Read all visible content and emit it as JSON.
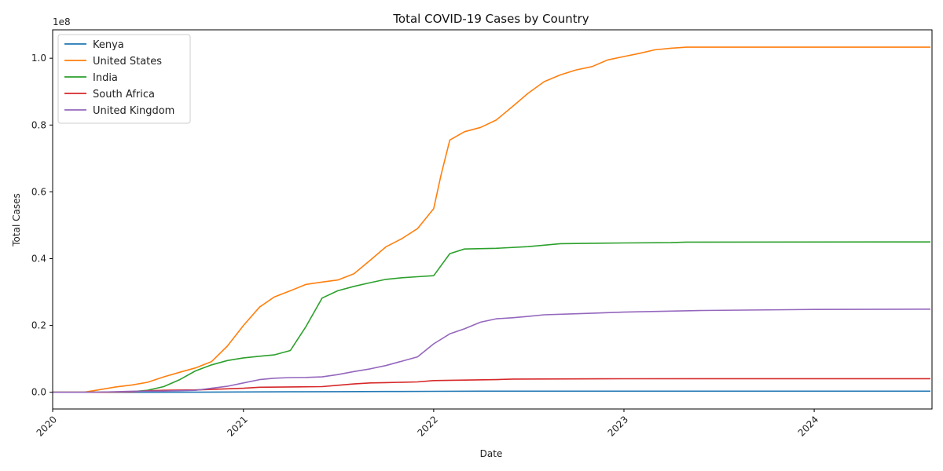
{
  "chart_data": {
    "type": "line",
    "title": "Total COVID-19 Cases by Country",
    "xlabel": "Date",
    "ylabel": "Total Cases",
    "y_scale_label": "1e8",
    "x_range": [
      "2020-01-01",
      "2024-08-14"
    ],
    "ylim": [
      -5000000,
      108500000
    ],
    "x_ticks": [
      "2020",
      "2021",
      "2022",
      "2023",
      "2024"
    ],
    "y_ticks": [
      0.0,
      0.2,
      0.4,
      0.6,
      0.8,
      1.0
    ],
    "y_tick_labels": [
      "0.0",
      "0.2",
      "0.4",
      "0.6",
      "0.8",
      "1.0"
    ],
    "grid": false,
    "legend_position": "top-left",
    "series": [
      {
        "name": "Kenya",
        "color": "#1f77b4",
        "points": [
          [
            "2020-01-01",
            0
          ],
          [
            "2020-04-01",
            0
          ],
          [
            "2020-07-01",
            10000
          ],
          [
            "2020-10-01",
            40000
          ],
          [
            "2021-01-01",
            95000
          ],
          [
            "2021-04-01",
            150000
          ],
          [
            "2021-07-01",
            190000
          ],
          [
            "2021-10-01",
            250000
          ],
          [
            "2022-01-01",
            295000
          ],
          [
            "2022-04-01",
            323000
          ],
          [
            "2022-07-01",
            334000
          ],
          [
            "2023-01-01",
            342000
          ],
          [
            "2024-01-01",
            344000
          ],
          [
            "2024-08-11",
            344000
          ]
        ]
      },
      {
        "name": "United States",
        "color": "#ff7f0e",
        "points": [
          [
            "2020-01-01",
            0
          ],
          [
            "2020-03-01",
            100
          ],
          [
            "2020-04-01",
            800000
          ],
          [
            "2020-05-01",
            1600000
          ],
          [
            "2020-06-01",
            2200000
          ],
          [
            "2020-07-01",
            3000000
          ],
          [
            "2020-08-01",
            4600000
          ],
          [
            "2020-09-01",
            6000000
          ],
          [
            "2020-10-01",
            7300000
          ],
          [
            "2020-11-01",
            9200000
          ],
          [
            "2020-12-01",
            13800000
          ],
          [
            "2021-01-01",
            20000000
          ],
          [
            "2021-02-01",
            25500000
          ],
          [
            "2021-03-01",
            28500000
          ],
          [
            "2021-04-01",
            30400000
          ],
          [
            "2021-05-01",
            32300000
          ],
          [
            "2021-06-01",
            33000000
          ],
          [
            "2021-07-01",
            33600000
          ],
          [
            "2021-08-01",
            35500000
          ],
          [
            "2021-09-01",
            39500000
          ],
          [
            "2021-10-01",
            43500000
          ],
          [
            "2021-11-01",
            46000000
          ],
          [
            "2021-12-01",
            49000000
          ],
          [
            "2022-01-01",
            55000000
          ],
          [
            "2022-01-15",
            65000000
          ],
          [
            "2022-02-01",
            75500000
          ],
          [
            "2022-03-01",
            78000000
          ],
          [
            "2022-04-01",
            79300000
          ],
          [
            "2022-05-01",
            81500000
          ],
          [
            "2022-06-01",
            85500000
          ],
          [
            "2022-07-01",
            89500000
          ],
          [
            "2022-08-01",
            93000000
          ],
          [
            "2022-09-01",
            95000000
          ],
          [
            "2022-10-01",
            96500000
          ],
          [
            "2022-11-01",
            97500000
          ],
          [
            "2022-12-01",
            99500000
          ],
          [
            "2023-01-01",
            100500000
          ],
          [
            "2023-02-01",
            101500000
          ],
          [
            "2023-03-01",
            102500000
          ],
          [
            "2023-04-01",
            103000000
          ],
          [
            "2023-05-01",
            103300000
          ],
          [
            "2024-08-11",
            103300000
          ]
        ]
      },
      {
        "name": "India",
        "color": "#2ca02c",
        "points": [
          [
            "2020-01-01",
            0
          ],
          [
            "2020-04-01",
            0
          ],
          [
            "2020-06-01",
            200000
          ],
          [
            "2020-07-01",
            600000
          ],
          [
            "2020-08-01",
            1700000
          ],
          [
            "2020-09-01",
            3800000
          ],
          [
            "2020-10-01",
            6400000
          ],
          [
            "2020-11-01",
            8200000
          ],
          [
            "2020-12-01",
            9500000
          ],
          [
            "2021-01-01",
            10300000
          ],
          [
            "2021-02-01",
            10800000
          ],
          [
            "2021-03-01",
            11200000
          ],
          [
            "2021-04-01",
            12500000
          ],
          [
            "2021-05-01",
            19700000
          ],
          [
            "2021-06-01",
            28200000
          ],
          [
            "2021-07-01",
            30400000
          ],
          [
            "2021-08-01",
            31700000
          ],
          [
            "2021-09-01",
            32800000
          ],
          [
            "2021-10-01",
            33800000
          ],
          [
            "2021-11-01",
            34300000
          ],
          [
            "2021-12-01",
            34600000
          ],
          [
            "2022-01-01",
            34900000
          ],
          [
            "2022-02-01",
            41500000
          ],
          [
            "2022-03-01",
            42900000
          ],
          [
            "2022-05-01",
            43100000
          ],
          [
            "2022-07-01",
            43600000
          ],
          [
            "2022-09-01",
            44500000
          ],
          [
            "2023-01-01",
            44700000
          ],
          [
            "2023-04-01",
            44800000
          ],
          [
            "2023-05-01",
            44950000
          ],
          [
            "2024-08-11",
            45000000
          ]
        ]
      },
      {
        "name": "South Africa",
        "color": "#d62728",
        "points": [
          [
            "2020-01-01",
            0
          ],
          [
            "2020-04-01",
            2000
          ],
          [
            "2020-06-01",
            150000
          ],
          [
            "2020-07-01",
            450000
          ],
          [
            "2020-08-01",
            600000
          ],
          [
            "2020-10-01",
            700000
          ],
          [
            "2020-12-01",
            1050000
          ],
          [
            "2021-01-01",
            1200000
          ],
          [
            "2021-02-01",
            1500000
          ],
          [
            "2021-04-01",
            1600000
          ],
          [
            "2021-06-01",
            1700000
          ],
          [
            "2021-07-01",
            2100000
          ],
          [
            "2021-08-01",
            2500000
          ],
          [
            "2021-09-01",
            2800000
          ],
          [
            "2021-10-01",
            2900000
          ],
          [
            "2021-12-01",
            3100000
          ],
          [
            "2022-01-01",
            3500000
          ],
          [
            "2022-03-01",
            3650000
          ],
          [
            "2022-05-01",
            3800000
          ],
          [
            "2022-06-01",
            3950000
          ],
          [
            "2023-01-01",
            4040000
          ],
          [
            "2024-08-11",
            4070000
          ]
        ]
      },
      {
        "name": "United Kingdom",
        "color": "#9467bd",
        "points": [
          [
            "2020-01-01",
            0
          ],
          [
            "2020-03-01",
            0
          ],
          [
            "2020-04-01",
            50000
          ],
          [
            "2020-06-01",
            300000
          ],
          [
            "2020-08-01",
            350000
          ],
          [
            "2020-10-01",
            600000
          ],
          [
            "2020-11-01",
            1200000
          ],
          [
            "2020-12-01",
            1800000
          ],
          [
            "2021-01-01",
            2800000
          ],
          [
            "2021-02-01",
            3800000
          ],
          [
            "2021-03-01",
            4200000
          ],
          [
            "2021-04-01",
            4400000
          ],
          [
            "2021-05-01",
            4450000
          ],
          [
            "2021-06-01",
            4600000
          ],
          [
            "2021-07-01",
            5300000
          ],
          [
            "2021-08-01",
            6200000
          ],
          [
            "2021-09-01",
            7000000
          ],
          [
            "2021-10-01",
            8000000
          ],
          [
            "2021-11-01",
            9300000
          ],
          [
            "2021-12-01",
            10600000
          ],
          [
            "2022-01-01",
            14500000
          ],
          [
            "2022-02-01",
            17500000
          ],
          [
            "2022-03-01",
            19000000
          ],
          [
            "2022-04-01",
            21000000
          ],
          [
            "2022-05-01",
            22000000
          ],
          [
            "2022-06-01",
            22300000
          ],
          [
            "2022-07-01",
            22700000
          ],
          [
            "2022-08-01",
            23200000
          ],
          [
            "2022-10-01",
            23500000
          ],
          [
            "2023-01-01",
            24000000
          ],
          [
            "2023-06-01",
            24500000
          ],
          [
            "2024-01-01",
            24800000
          ],
          [
            "2024-08-11",
            24900000
          ]
        ]
      }
    ]
  }
}
